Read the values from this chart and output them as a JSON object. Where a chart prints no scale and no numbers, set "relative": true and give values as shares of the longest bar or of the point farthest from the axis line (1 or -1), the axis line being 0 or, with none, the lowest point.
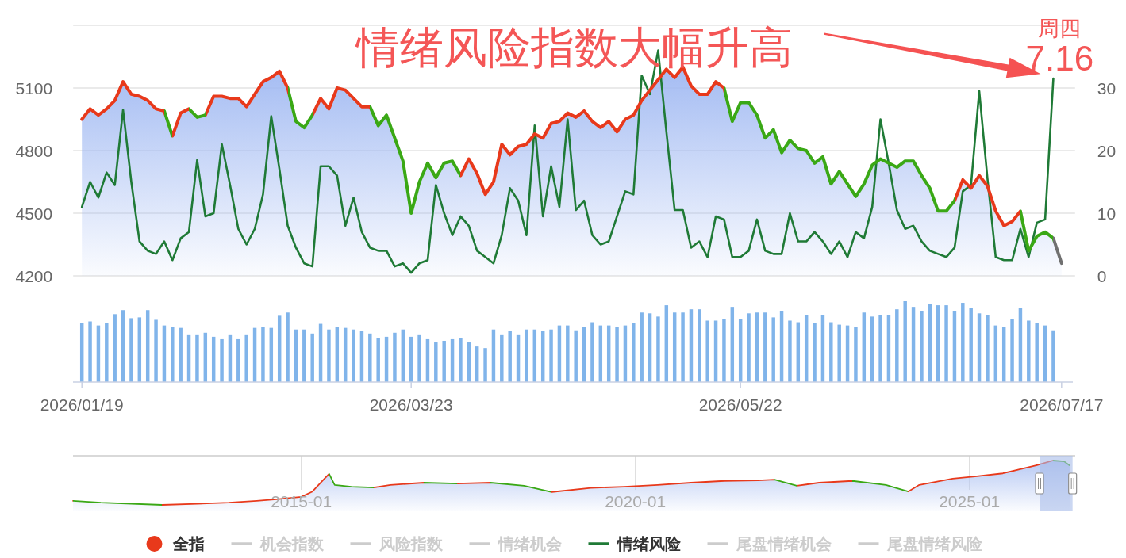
{
  "chart_data": [
    {
      "type": "line",
      "title": "情绪风险指数大幅升高",
      "annotations": [
        "周四",
        "7.16"
      ],
      "categories": [
        "2026/01/19",
        null,
        null,
        null,
        null,
        null,
        null,
        null,
        null,
        null,
        null,
        null,
        null,
        null,
        null,
        null,
        null,
        null,
        null,
        null,
        null,
        null,
        null,
        null,
        null,
        null,
        null,
        null,
        null,
        null,
        null,
        null,
        null,
        null,
        null,
        null,
        null,
        null,
        null,
        null,
        "2026/03/23",
        null,
        null,
        null,
        null,
        null,
        null,
        null,
        null,
        null,
        null,
        null,
        null,
        null,
        null,
        null,
        null,
        null,
        null,
        null,
        null,
        null,
        null,
        null,
        null,
        null,
        null,
        null,
        null,
        null,
        null,
        null,
        null,
        null,
        null,
        null,
        null,
        null,
        null,
        null,
        "2026/05/22",
        null,
        null,
        null,
        null,
        null,
        null,
        null,
        null,
        null,
        null,
        null,
        null,
        null,
        null,
        null,
        null,
        null,
        null,
        null,
        null,
        null,
        null,
        null,
        null,
        null,
        null,
        null,
        null,
        null,
        null,
        null,
        null,
        null,
        null,
        null,
        null,
        null,
        null,
        "2026/07/17"
      ],
      "tick_labels": "y",
      "ylim": [
        4200,
        5400
      ],
      "yticks": [
        4200,
        4500,
        4800,
        5100,
        {
          "value": 5400,
          "label": null
        }
      ],
      "y2lim": [
        0,
        40
      ],
      "y2ticks": [
        0,
        10,
        20,
        30
      ],
      "grid": "y",
      "legend": "bottom",
      "series": [
        {
          "name": "全指",
          "type": "area",
          "color": "#9fb8f2",
          "colors": [
            "#e8391b",
            "#e8391b",
            "#e8391b",
            "#e8391b",
            "#e8391b",
            "#e8391b",
            "#e8391b",
            "#e8391b",
            "#e8391b",
            "#e8391b",
            "#e8391b",
            "#3aa815",
            "#e8391b",
            "#e8391b",
            "#3aa815",
            "#3aa815",
            "#e8391b",
            "#e8391b",
            "#e8391b",
            "#e8391b",
            "#e8391b",
            "#e8391b",
            "#e8391b",
            "#e8391b",
            "#e8391b",
            "#e8391b",
            "#3aa815",
            "#3aa815",
            "#3aa815",
            "#e8391b",
            "#e8391b",
            "#e8391b",
            "#e8391b",
            "#e8391b",
            "#e8391b",
            "#e8391b",
            "#3aa815",
            "#3aa815",
            "#3aa815",
            "#3aa815",
            "#3aa815",
            "#3aa815",
            "#3aa815",
            "#3aa815",
            "#3aa815",
            "#3aa815",
            "#3aa815",
            "#e8391b",
            "#e8391b",
            "#e8391b",
            "#e8391b",
            "#e8391b",
            "#e8391b",
            "#e8391b",
            "#e8391b",
            "#e8391b",
            "#e8391b",
            "#e8391b",
            "#e8391b",
            "#e8391b",
            "#e8391b",
            "#e8391b",
            "#e8391b",
            "#e8391b",
            "#e8391b",
            "#e8391b",
            "#e8391b",
            "#e8391b",
            "#e8391b",
            "#e8391b",
            "#e8391b",
            "#e8391b",
            "#e8391b",
            "#e8391b",
            "#e8391b",
            "#e8391b",
            "#e8391b",
            "#e8391b",
            "#e8391b",
            "#3aa815",
            "#3aa815",
            "#3aa815",
            "#3aa815",
            "#3aa815",
            "#3aa815",
            "#3aa815",
            "#3aa815",
            "#3aa815",
            "#3aa815",
            "#3aa815",
            "#3aa815",
            "#3aa815",
            "#3aa815",
            "#3aa815",
            "#3aa815",
            "#3aa815",
            "#3aa815",
            "#3aa815",
            "#3aa815",
            "#3aa815",
            "#3aa815",
            "#3aa815",
            "#3aa815",
            "#3aa815",
            "#3aa815",
            "#3aa815",
            "#3aa815",
            "#e8391b",
            "#e8391b",
            "#e8391b",
            "#e8391b",
            "#e8391b",
            "#e8391b",
            "#e8391b",
            "#e8391b",
            "#3aa815",
            "#3aa815",
            "#3aa815",
            "#3aa815",
            "#707070"
          ],
          "values": [
            4950,
            5000,
            4970,
            5000,
            5040,
            5130,
            5070,
            5060,
            5040,
            5000,
            4990,
            4870,
            4980,
            5000,
            4960,
            4970,
            5060,
            5060,
            5050,
            5050,
            5010,
            5070,
            5130,
            5150,
            5180,
            5100,
            4940,
            4910,
            4970,
            5050,
            5000,
            5100,
            5090,
            5050,
            5010,
            5010,
            4920,
            4970,
            4860,
            4750,
            4500,
            4650,
            4740,
            4670,
            4740,
            4750,
            4680,
            4760,
            4690,
            4590,
            4650,
            4830,
            4780,
            4820,
            4830,
            4880,
            4860,
            4930,
            4940,
            4980,
            4960,
            4990,
            4940,
            4910,
            4940,
            4890,
            4950,
            4970,
            5040,
            5090,
            5140,
            5190,
            5150,
            5200,
            5110,
            5070,
            5070,
            5130,
            5100,
            4940,
            5030,
            5030,
            4970,
            4860,
            4900,
            4790,
            4850,
            4810,
            4800,
            4740,
            4770,
            4640,
            4700,
            4640,
            4580,
            4640,
            4730,
            4760,
            4740,
            4720,
            4750,
            4750,
            4680,
            4620,
            4510,
            4510,
            4560,
            4660,
            4620,
            4680,
            4630,
            4510,
            4440,
            4460,
            4510,
            4320,
            4390,
            4410,
            4380,
            4260
          ]
        },
        {
          "name": "机会指数",
          "color": "#cccccc",
          "values": [
            null,
            null,
            null,
            null,
            null,
            null,
            null,
            null,
            null,
            null,
            null,
            null,
            null,
            null,
            null,
            null,
            null,
            null,
            null,
            null,
            null,
            null,
            null,
            null,
            null,
            null,
            null,
            null,
            null,
            null,
            null,
            null,
            null,
            null,
            null,
            null,
            null,
            null,
            null,
            null,
            null,
            null,
            null,
            null,
            null,
            null,
            null,
            null,
            null,
            null,
            null,
            null,
            null,
            null,
            null,
            null,
            null,
            null,
            null,
            null,
            null,
            null,
            null,
            null,
            null,
            null,
            null,
            null,
            null,
            null,
            null,
            null,
            null,
            null,
            null,
            null,
            null,
            null,
            null,
            null,
            null,
            null,
            null,
            null,
            null,
            null,
            null,
            null,
            null,
            null,
            null,
            null,
            null,
            null,
            null,
            null,
            null,
            null,
            null,
            null,
            null,
            null,
            null,
            null,
            null,
            null,
            null,
            null,
            null,
            null,
            null,
            null,
            null,
            null,
            null,
            null,
            null,
            null,
            null,
            null
          ]
        },
        {
          "name": "风险指数",
          "color": "#cccccc",
          "values": [
            null,
            null,
            null,
            null,
            null,
            null,
            null,
            null,
            null,
            null,
            null,
            null,
            null,
            null,
            null,
            null,
            null,
            null,
            null,
            null,
            null,
            null,
            null,
            null,
            null,
            null,
            null,
            null,
            null,
            null,
            null,
            null,
            null,
            null,
            null,
            null,
            null,
            null,
            null,
            null,
            null,
            null,
            null,
            null,
            null,
            null,
            null,
            null,
            null,
            null,
            null,
            null,
            null,
            null,
            null,
            null,
            null,
            null,
            null,
            null,
            null,
            null,
            null,
            null,
            null,
            null,
            null,
            null,
            null,
            null,
            null,
            null,
            null,
            null,
            null,
            null,
            null,
            null,
            null,
            null,
            null,
            null,
            null,
            null,
            null,
            null,
            null,
            null,
            null,
            null,
            null,
            null,
            null,
            null,
            null,
            null,
            null,
            null,
            null,
            null,
            null,
            null,
            null,
            null,
            null,
            null,
            null,
            null,
            null,
            null,
            null,
            null,
            null,
            null,
            null,
            null,
            null,
            null,
            null,
            null
          ]
        },
        {
          "name": "情绪机会",
          "color": "#cccccc",
          "values": [
            null,
            null,
            null,
            null,
            null,
            null,
            null,
            null,
            null,
            null,
            null,
            null,
            null,
            null,
            null,
            null,
            null,
            null,
            null,
            null,
            null,
            null,
            null,
            null,
            null,
            null,
            null,
            null,
            null,
            null,
            null,
            null,
            null,
            null,
            null,
            null,
            null,
            null,
            null,
            null,
            null,
            null,
            null,
            null,
            null,
            null,
            null,
            null,
            null,
            null,
            null,
            null,
            null,
            null,
            null,
            null,
            null,
            null,
            null,
            null,
            null,
            null,
            null,
            null,
            null,
            null,
            null,
            null,
            null,
            null,
            null,
            null,
            null,
            null,
            null,
            null,
            null,
            null,
            null,
            null,
            null,
            null,
            null,
            null,
            null,
            null,
            null,
            null,
            null,
            null,
            null,
            null,
            null,
            null,
            null,
            null,
            null,
            null,
            null,
            null,
            null,
            null,
            null,
            null,
            null,
            null,
            null,
            null,
            null,
            null,
            null,
            null,
            null,
            null,
            null,
            null,
            null,
            null,
            null,
            null
          ]
        },
        {
          "name": "情绪风险",
          "axis": "y2",
          "color": "#1f7a36",
          "values": [
            11,
            15,
            12.5,
            16.5,
            14.5,
            26.5,
            15,
            5.5,
            4,
            3.5,
            5.5,
            2.5,
            6,
            7,
            18.5,
            9.5,
            10,
            21,
            14.5,
            7.5,
            5,
            7.5,
            13,
            25.5,
            17,
            8,
            4.5,
            2,
            1.5,
            17.5,
            17.5,
            16,
            8,
            12.5,
            7,
            4.5,
            4,
            4,
            1.5,
            2,
            0.5,
            2,
            2.5,
            14.5,
            10,
            6.5,
            9.5,
            8,
            4,
            3,
            2,
            6.5,
            14,
            12,
            6.5,
            24,
            9.5,
            17.5,
            11,
            25,
            10.5,
            12,
            6.5,
            5,
            5.5,
            9.5,
            13.5,
            13,
            32,
            29,
            36,
            23,
            10.5,
            10.5,
            4.5,
            5.5,
            3,
            9.5,
            9,
            3,
            3,
            4,
            9,
            4,
            3.5,
            3.5,
            10,
            5.5,
            5.5,
            7,
            5.5,
            3.5,
            5.5,
            3,
            7,
            6,
            11,
            25,
            18,
            10.5,
            7.5,
            8,
            5.5,
            4,
            3.5,
            3,
            4.5,
            13.5,
            14.5,
            29.5,
            15.5,
            3,
            2.5,
            2.5,
            7.5,
            3,
            8.5,
            9,
            31.5,
            null
          ]
        },
        {
          "name": "尾盘情绪机会",
          "color": "#cccccc",
          "values": [
            null,
            null,
            null,
            null,
            null,
            null,
            null,
            null,
            null,
            null,
            null,
            null,
            null,
            null,
            null,
            null,
            null,
            null,
            null,
            null,
            null,
            null,
            null,
            null,
            null,
            null,
            null,
            null,
            null,
            null,
            null,
            null,
            null,
            null,
            null,
            null,
            null,
            null,
            null,
            null,
            null,
            null,
            null,
            null,
            null,
            null,
            null,
            null,
            null,
            null,
            null,
            null,
            null,
            null,
            null,
            null,
            null,
            null,
            null,
            null,
            null,
            null,
            null,
            null,
            null,
            null,
            null,
            null,
            null,
            null,
            null,
            null,
            null,
            null,
            null,
            null,
            null,
            null,
            null,
            null,
            null,
            null,
            null,
            null,
            null,
            null,
            null,
            null,
            null,
            null,
            null,
            null,
            null,
            null,
            null,
            null,
            null,
            null,
            null,
            null,
            null,
            null,
            null,
            null,
            null,
            null,
            null,
            null,
            null,
            null,
            null,
            null,
            null,
            null,
            null,
            null,
            null,
            null,
            null,
            null
          ]
        },
        {
          "name": "尾盘情绪风险",
          "color": "#cccccc",
          "values": [
            null,
            null,
            null,
            null,
            null,
            null,
            null,
            null,
            null,
            null,
            null,
            null,
            null,
            null,
            null,
            null,
            null,
            null,
            null,
            null,
            null,
            null,
            null,
            null,
            null,
            null,
            null,
            null,
            null,
            null,
            null,
            null,
            null,
            null,
            null,
            null,
            null,
            null,
            null,
            null,
            null,
            null,
            null,
            null,
            null,
            null,
            null,
            null,
            null,
            null,
            null,
            null,
            null,
            null,
            null,
            null,
            null,
            null,
            null,
            null,
            null,
            null,
            null,
            null,
            null,
            null,
            null,
            null,
            null,
            null,
            null,
            null,
            null,
            null,
            null,
            null,
            null,
            null,
            null,
            null,
            null,
            null,
            null,
            null,
            null,
            null,
            null,
            null,
            null,
            null,
            null,
            null,
            null,
            null,
            null,
            null,
            null,
            null,
            null,
            null,
            null,
            null,
            null,
            null,
            null,
            null,
            null,
            null,
            null,
            null,
            null,
            null,
            null,
            null,
            null,
            null,
            null,
            null,
            null,
            null
          ]
        }
      ]
    },
    {
      "type": "bar",
      "relative": true,
      "color": "#80b4ea",
      "categories": [
        "2026/01/19",
        null,
        null,
        null,
        null,
        null,
        null,
        null,
        null,
        null,
        null,
        null,
        null,
        null,
        null,
        null,
        null,
        null,
        null,
        null,
        null,
        null,
        null,
        null,
        null,
        null,
        null,
        null,
        null,
        null,
        null,
        null,
        null,
        null,
        null,
        null,
        null,
        null,
        null,
        null,
        "2026/03/23",
        null,
        null,
        null,
        null,
        null,
        null,
        null,
        null,
        null,
        null,
        null,
        null,
        null,
        null,
        null,
        null,
        null,
        null,
        null,
        null,
        null,
        null,
        null,
        null,
        null,
        null,
        null,
        null,
        null,
        null,
        null,
        null,
        null,
        null,
        null,
        null,
        null,
        null,
        null,
        "2026/05/22",
        null,
        null,
        null,
        null,
        null,
        null,
        null,
        null,
        null,
        null,
        null,
        null,
        null,
        null,
        null,
        null,
        null,
        null,
        null,
        null,
        null,
        null,
        null,
        null,
        null,
        null,
        null,
        null,
        null,
        null,
        null,
        null,
        null,
        null,
        null,
        null,
        null,
        null,
        "2026/07/17"
      ],
      "values": [
        0.73,
        0.75,
        0.7,
        0.73,
        0.84,
        0.89,
        0.79,
        0.8,
        0.89,
        0.77,
        0.7,
        0.68,
        0.67,
        0.58,
        0.58,
        0.61,
        0.56,
        0.53,
        0.58,
        0.53,
        0.58,
        0.67,
        0.68,
        0.67,
        0.82,
        0.86,
        0.65,
        0.65,
        0.6,
        0.72,
        0.65,
        0.68,
        0.67,
        0.65,
        0.63,
        0.6,
        0.54,
        0.56,
        0.61,
        0.65,
        0.56,
        0.58,
        0.53,
        0.49,
        0.51,
        0.53,
        0.54,
        0.49,
        0.44,
        0.42,
        0.65,
        0.58,
        0.63,
        0.58,
        0.65,
        0.65,
        0.63,
        0.65,
        0.7,
        0.7,
        0.64,
        0.68,
        0.74,
        0.7,
        0.7,
        0.68,
        0.7,
        0.73,
        0.86,
        0.85,
        0.81,
        0.95,
        0.86,
        0.86,
        0.9,
        0.9,
        0.76,
        0.76,
        0.78,
        0.93,
        0.78,
        0.85,
        0.86,
        0.86,
        0.8,
        0.88,
        0.76,
        0.74,
        0.83,
        0.73,
        0.83,
        0.74,
        0.71,
        0.7,
        0.68,
        0.86,
        0.81,
        0.83,
        0.83,
        0.9,
        1,
        0.93,
        0.88,
        0.97,
        0.95,
        0.95,
        0.88,
        0.98,
        0.92,
        0.85,
        0.83,
        0.7,
        0.68,
        0.78,
        0.92,
        0.76,
        0.73,
        0.7,
        0.64,
        null
      ]
    },
    {
      "type": "area",
      "relative": true,
      "color": "#b3c6f3",
      "x": [
        "2011-08",
        "2012-01",
        "2012-12",
        "2013-12",
        "2014-05",
        "2014-09",
        "2015-01",
        "2015-03",
        "2015-05",
        "2015-06",
        "2015-07",
        "2015-10",
        "2016-02",
        "2016-05",
        "2016-11",
        "2017-05",
        "2017-11",
        "2018-05",
        "2018-10",
        "2019-05",
        "2019-11",
        "2020-05",
        "2020-11",
        "2021-05",
        "2021-11",
        "2022-02",
        "2022-06",
        "2022-10",
        "2023-04",
        "2023-10",
        "2024-02",
        "2024-04",
        "2024-10",
        "2025-02",
        "2025-07",
        "2025-10",
        "2026-01",
        "2026-04",
        "2026-06",
        "2026-07"
      ],
      "values": [
        0.09,
        0.05,
        0,
        0.05,
        0.09,
        0.13,
        0.18,
        0.3,
        0.57,
        0.7,
        0.45,
        0.41,
        0.39,
        0.45,
        0.5,
        0.48,
        0.5,
        0.43,
        0.29,
        0.38,
        0.41,
        0.45,
        0.5,
        0.54,
        0.55,
        0.57,
        0.43,
        0.5,
        0.54,
        0.45,
        0.3,
        0.45,
        0.59,
        0.64,
        0.71,
        0.8,
        0.89,
        1,
        0.98,
        0.89
      ],
      "colors": [
        "#e8391b",
        "#3aa815",
        "#3aa815",
        "#e8391b",
        "#e8391b",
        "#e8391b",
        "#e8391b",
        "#e8391b",
        "#e8391b",
        "#e8391b",
        "#3aa815",
        "#3aa815",
        "#3aa815",
        "#e8391b",
        "#e8391b",
        "#3aa815",
        "#e8391b",
        "#3aa815",
        "#3aa815",
        "#e8391b",
        "#e8391b",
        "#e8391b",
        "#e8391b",
        "#e8391b",
        "#e8391b",
        "#e8391b",
        "#3aa815",
        "#e8391b",
        "#e8391b",
        "#3aa815",
        "#3aa815",
        "#e8391b",
        "#e8391b",
        "#e8391b",
        "#e8391b",
        "#e8391b",
        "#e8391b",
        "#e8391b",
        "#3aa815",
        "#3aa815"
      ],
      "xlim": [
        "2011-08",
        "2026-08"
      ],
      "xticks": [
        "2015-01",
        "2020-01",
        "2025-01"
      ],
      "grid": "x",
      "bands": [
        {
          "axis": "x",
          "from": "2026-01-19",
          "to": "2026-07-17",
          "color": "#a9bde9"
        }
      ]
    }
  ]
}
